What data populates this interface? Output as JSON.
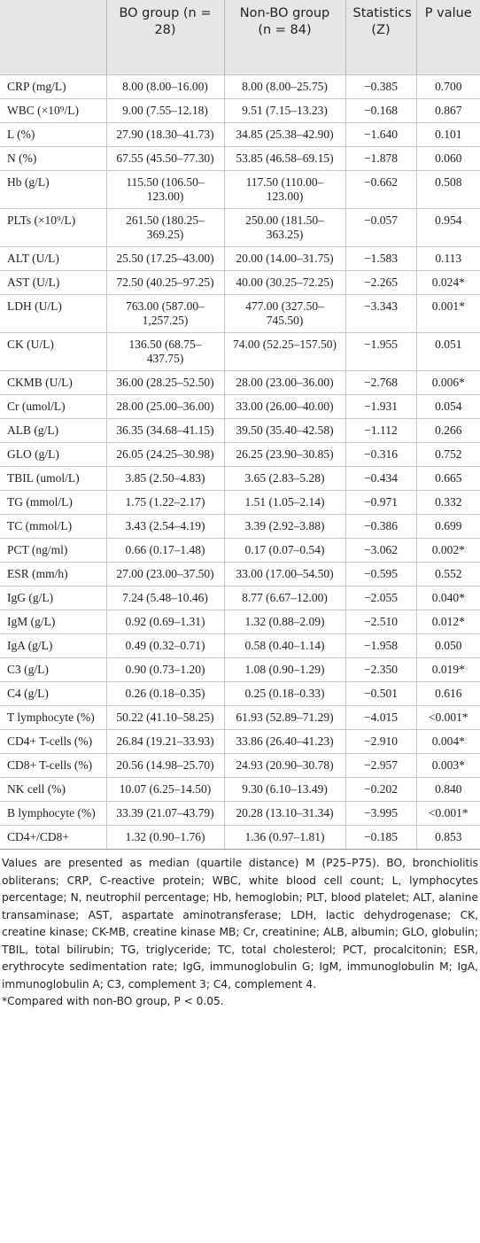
{
  "table": {
    "header": [
      "",
      "BO group (n = 28)",
      "Non-BO group (n = 84)",
      "Statistics (Z)",
      "P value"
    ],
    "rows": [
      [
        "CRP (mg/L)",
        "8.00 (8.00–16.00)",
        "8.00 (8.00–25.75)",
        "−0.385",
        "0.700"
      ],
      [
        "WBC (×10⁹/L)",
        "9.00 (7.55–12.18)",
        "9.51 (7.15–13.23)",
        "−0.168",
        "0.867"
      ],
      [
        "L (%)",
        "27.90 (18.30–41.73)",
        "34.85 (25.38–42.90)",
        "−1.640",
        "0.101"
      ],
      [
        "N (%)",
        "67.55 (45.50–77.30)",
        "53.85 (46.58–69.15)",
        "−1.878",
        "0.060"
      ],
      [
        "Hb (g/L)",
        "115.50 (106.50–123.00)",
        "117.50 (110.00–123.00)",
        "−0.662",
        "0.508"
      ],
      [
        "PLTs (×10⁹/L)",
        "261.50 (180.25–369.25)",
        "250.00 (181.50–363.25)",
        "−0.057",
        "0.954"
      ],
      [
        "ALT (U/L)",
        "25.50 (17.25–43.00)",
        "20.00 (14.00–31.75)",
        "−1.583",
        "0.113"
      ],
      [
        "AST (U/L)",
        "72.50 (40.25–97.25)",
        "40.00 (30.25–72.25)",
        "−2.265",
        "0.024*"
      ],
      [
        "LDH (U/L)",
        "763.00 (587.00–1,257.25)",
        "477.00 (327.50–745.50)",
        "−3.343",
        "0.001*"
      ],
      [
        "CK (U/L)",
        "136.50 (68.75–437.75)",
        "74.00 (52.25–157.50)",
        "−1.955",
        "0.051"
      ],
      [
        "CKMB (U/L)",
        "36.00 (28.25–52.50)",
        "28.00 (23.00–36.00)",
        "−2.768",
        "0.006*"
      ],
      [
        "Cr (umol/L)",
        "28.00 (25.00–36.00)",
        "33.00 (26.00–40.00)",
        "−1.931",
        "0.054"
      ],
      [
        "ALB (g/L)",
        "36.35 (34.68–41.15)",
        "39.50 (35.40–42.58)",
        "−1.112",
        "0.266"
      ],
      [
        "GLO (g/L)",
        "26.05 (24.25–30.98)",
        "26.25 (23.90–30.85)",
        "−0.316",
        "0.752"
      ],
      [
        "TBIL (umol/L)",
        "3.85 (2.50–4.83)",
        "3.65 (2.83–5.28)",
        "−0.434",
        "0.665"
      ],
      [
        "TG (mmol/L)",
        "1.75 (1.22–2.17)",
        "1.51 (1.05–2.14)",
        "−0.971",
        "0.332"
      ],
      [
        "TC (mmol/L)",
        "3.43 (2.54–4.19)",
        "3.39 (2.92–3.88)",
        "−0.386",
        "0.699"
      ],
      [
        "PCT (ng/ml)",
        "0.66 (0.17–1.48)",
        "0.17 (0.07–0.54)",
        "−3.062",
        "0.002*"
      ],
      [
        "ESR (mm/h)",
        "27.00 (23.00–37.50)",
        "33.00 (17.00–54.50)",
        "−0.595",
        "0.552"
      ],
      [
        "IgG (g/L)",
        "7.24 (5.48–10.46)",
        "8.77 (6.67–12.00)",
        "−2.055",
        "0.040*"
      ],
      [
        "IgM (g/L)",
        "0.92 (0.69–1.31)",
        "1.32 (0.88–2.09)",
        "−2.510",
        "0.012*"
      ],
      [
        "IgA (g/L)",
        "0.49 (0.32–0.71)",
        "0.58 (0.40–1.14)",
        "−1.958",
        "0.050"
      ],
      [
        "C3 (g/L)",
        "0.90 (0.73–1.20)",
        "1.08 (0.90–1.29)",
        "−2.350",
        "0.019*"
      ],
      [
        "C4 (g/L)",
        "0.26 (0.18–0.35)",
        "0.25 (0.18–0.33)",
        "−0.501",
        "0.616"
      ],
      [
        "T lymphocyte (%)",
        "50.22 (41.10–58.25)",
        "61.93 (52.89–71.29)",
        "−4.015",
        "<0.001*"
      ],
      [
        "CD4+ T-cells (%)",
        "26.84 (19.21–33.93)",
        "33.86 (26.40–41.23)",
        "−2.910",
        "0.004*"
      ],
      [
        "CD8+ T-cells (%)",
        "20.56 (14.98–25.70)",
        "24.93 (20.90–30.78)",
        "−2.957",
        "0.003*"
      ],
      [
        "NK cell (%)",
        "10.07 (6.25–14.50)",
        "9.30 (6.10–13.49)",
        "−0.202",
        "0.840"
      ],
      [
        "B lymphocyte (%)",
        "33.39 (21.07–43.79)",
        "20.28 (13.10–31.34)",
        "−3.995",
        "<0.001*"
      ],
      [
        "CD4+/CD8+",
        "1.32 (0.90–1.76)",
        "1.36 (0.97–1.81)",
        "−0.185",
        "0.853"
      ]
    ]
  },
  "notes": [
    "Values are presented as median (quartile distance) M (P25–P75). BO, bronchiolitis obliterans; CRP, C-reactive protein; WBC, white blood cell count; L, lymphocytes percentage; N, neutrophil percentage; Hb, hemoglobin; PLT, blood platelet; ALT, alanine transaminase; AST, aspartate aminotransferase; LDH, lactic dehydrogenase; CK, creatine kinase; CK-MB, creatine kinase MB; Cr, creatinine; ALB, albumin; GLO, globulin; TBIL, total bilirubin; TG, triglyceride; TC, total cholesterol; PCT, procalcitonin; ESR, erythrocyte sedimentation rate; IgG, immunoglobulin G; IgM, immunoglobulin M; IgA, immunoglobulin A; C3, complement 3; C4, complement 4.",
    "*Compared with non-BO group, P < 0.05."
  ]
}
